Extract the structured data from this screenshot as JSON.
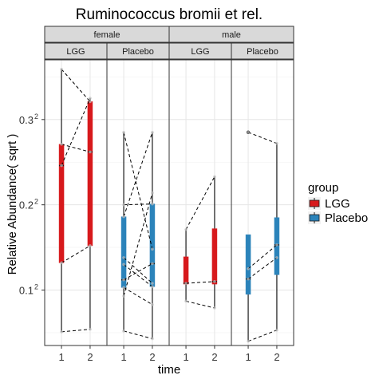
{
  "chart_data": {
    "type": "boxplot",
    "title": "Ruminococcus bromii et rel.",
    "xlabel": "time",
    "ylabel": "Relative Abundance( sqrt )",
    "y_scale": "sqrt",
    "y_ticks": [
      {
        "base": "0.1",
        "exp": "2",
        "value": 0.1
      },
      {
        "base": "0.2",
        "exp": "2",
        "value": 0.2
      },
      {
        "base": "0.3",
        "exp": "2",
        "value": 0.3
      }
    ],
    "ylim_sqrt": [
      0.035,
      0.37
    ],
    "x_tick_labels": [
      "1",
      "2"
    ],
    "facets_top": [
      "female",
      "male"
    ],
    "facets_sub": [
      "LGG",
      "Placebo",
      "LGG",
      "Placebo"
    ],
    "legend": {
      "title": "group",
      "entries": [
        {
          "label": "LGG",
          "color": "#d7191c"
        },
        {
          "label": "Placebo",
          "color": "#2b83ba"
        }
      ]
    },
    "panels": [
      {
        "sex": "female",
        "group": "LGG",
        "color": "#d7191c",
        "boxes": [
          {
            "time": "1",
            "whisker_low": 0.051,
            "q1": 0.132,
            "median": 0.246,
            "q3": 0.271,
            "whisker_high": 0.359
          },
          {
            "time": "2",
            "whisker_low": 0.054,
            "q1": 0.152,
            "median": 0.262,
            "q3": 0.321,
            "whisker_high": 0.325
          }
        ],
        "subjects": [
          {
            "t1": 0.359,
            "t2": 0.321
          },
          {
            "t1": 0.246,
            "t2": 0.325
          },
          {
            "t1": 0.132,
            "t2": 0.152
          },
          {
            "t1": 0.271,
            "t2": 0.262
          },
          {
            "t1": 0.051,
            "t2": 0.054
          }
        ]
      },
      {
        "sex": "female",
        "group": "Placebo",
        "color": "#2b83ba",
        "boxes": [
          {
            "time": "1",
            "whisker_low": 0.052,
            "q1": 0.103,
            "median": 0.112,
            "q3": 0.186,
            "whisker_high": 0.285
          },
          {
            "time": "2",
            "whisker_low": 0.043,
            "q1": 0.104,
            "median": 0.131,
            "q3": 0.201,
            "whisker_high": 0.285
          }
        ],
        "subjects": [
          {
            "t1": 0.285,
            "t2": 0.148
          },
          {
            "t1": 0.186,
            "t2": 0.285
          },
          {
            "t1": 0.2,
            "t2": 0.201
          },
          {
            "t1": 0.138,
            "t2": 0.108
          },
          {
            "t1": 0.13,
            "t2": 0.104
          },
          {
            "t1": 0.112,
            "t2": 0.131
          },
          {
            "t1": 0.103,
            "t2": 0.083
          },
          {
            "t1": 0.093,
            "t2": 0.214
          },
          {
            "t1": 0.052,
            "t2": 0.043
          }
        ]
      },
      {
        "sex": "male",
        "group": "LGG",
        "color": "#d7191c",
        "boxes": [
          {
            "time": "1",
            "whisker_low": 0.087,
            "q1": 0.107,
            "median": 0.108,
            "q3": 0.139,
            "whisker_high": 0.171
          },
          {
            "time": "2",
            "whisker_low": 0.079,
            "q1": 0.107,
            "median": 0.11,
            "q3": 0.172,
            "whisker_high": 0.233
          }
        ],
        "subjects": [
          {
            "t1": 0.171,
            "t2": 0.233
          },
          {
            "t1": 0.108,
            "t2": 0.11
          },
          {
            "t1": 0.087,
            "t2": 0.079
          }
        ]
      },
      {
        "sex": "male",
        "group": "Placebo",
        "color": "#2b83ba",
        "boxes": [
          {
            "time": "1",
            "whisker_low": 0.04,
            "q1": 0.095,
            "median": 0.113,
            "q3": 0.165,
            "whisker_high": 0.165,
            "outliers": [
              0.285
            ]
          },
          {
            "time": "2",
            "whisker_low": 0.053,
            "q1": 0.118,
            "median": 0.153,
            "q3": 0.185,
            "whisker_high": 0.272
          }
        ],
        "subjects": [
          {
            "t1": 0.285,
            "t2": 0.272
          },
          {
            "t1": 0.125,
            "t2": 0.153
          },
          {
            "t1": 0.113,
            "t2": 0.138
          },
          {
            "t1": 0.04,
            "t2": 0.053
          }
        ]
      }
    ]
  }
}
